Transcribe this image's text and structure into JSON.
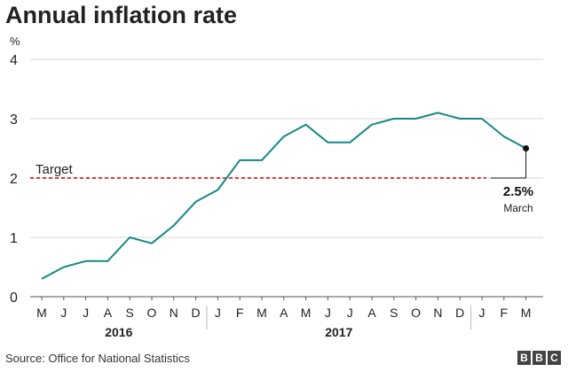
{
  "title": "Annual inflation rate",
  "source": "Source: Office for National Statistics",
  "logo": {
    "letters": [
      "B",
      "B",
      "C"
    ]
  },
  "colors": {
    "line": "#158984",
    "target": "#cc0000",
    "grid": "#d9d9d9",
    "text": "#222222"
  },
  "chart_data": {
    "type": "line",
    "title": "Annual inflation rate",
    "ylabel": "%",
    "ylim": [
      0,
      4
    ],
    "yticks": [
      0,
      1,
      2,
      3,
      4
    ],
    "grid": true,
    "categories": [
      "M",
      "J",
      "J",
      "A",
      "S",
      "O",
      "N",
      "D",
      "J",
      "F",
      "M",
      "A",
      "M",
      "J",
      "J",
      "A",
      "S",
      "O",
      "N",
      "D",
      "J",
      "F",
      "M"
    ],
    "years": [
      {
        "label": "2016",
        "from": 0,
        "to": 7
      },
      {
        "label": "2017",
        "from": 8,
        "to": 19
      }
    ],
    "series": [
      {
        "values": [
          0.3,
          0.5,
          0.6,
          0.6,
          1.0,
          0.9,
          1.2,
          1.6,
          1.8,
          2.3,
          2.3,
          2.7,
          2.9,
          2.6,
          2.6,
          2.9,
          3.0,
          3.0,
          3.1,
          3.0,
          3.0,
          2.7,
          2.5
        ]
      }
    ],
    "target": {
      "label": "Target",
      "value": 2
    },
    "annotation": {
      "value_label": "2.5%",
      "month_label": "March"
    }
  }
}
